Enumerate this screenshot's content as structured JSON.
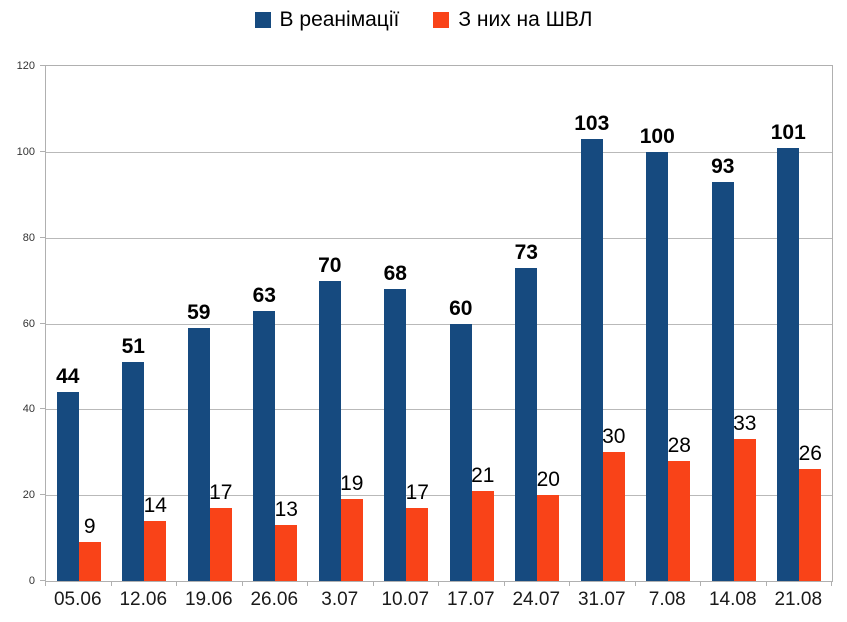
{
  "chart_data": {
    "type": "bar",
    "title": "",
    "categories": [
      "05.06",
      "12.06",
      "19.06",
      "26.06",
      "3.07",
      "10.07",
      "17.07",
      "24.07",
      "31.07",
      "7.08",
      "14.08",
      "21.08"
    ],
    "series": [
      {
        "name": "В реанімації",
        "color": "#164a7f",
        "values": [
          44,
          51,
          59,
          63,
          70,
          68,
          60,
          73,
          103,
          100,
          93,
          101
        ],
        "label_bold": true
      },
      {
        "name": "З них на ШВЛ",
        "color": "#f94318",
        "values": [
          9,
          14,
          17,
          13,
          19,
          17,
          21,
          20,
          30,
          28,
          33,
          26
        ],
        "label_bold": false
      }
    ],
    "xlabel": "",
    "ylabel": "",
    "ylim": [
      0,
      120
    ],
    "yticks": [
      0,
      20,
      40,
      60,
      80,
      100,
      120
    ],
    "grid": true,
    "legend_position": "top",
    "grid_color": "#b9b9b9",
    "axis_color": "#b0b0b0"
  }
}
